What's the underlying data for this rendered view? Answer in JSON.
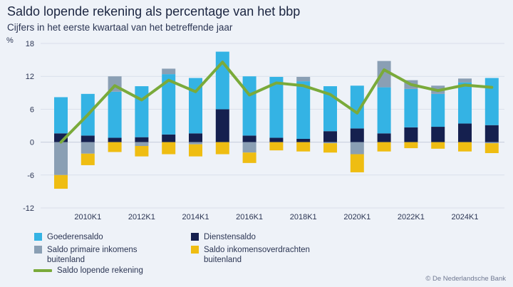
{
  "header": {
    "title": "Saldo lopende rekening als percentage van het bbp",
    "subtitle": "Cijfers in het eerste kwartaal van het betreffende jaar",
    "unit": "%"
  },
  "legend": {
    "goods": "Goederensaldo",
    "services": "Dienstensaldo",
    "primary": "Saldo primaire inkomens buitenland",
    "transfers": "Saldo inkomensoverdrachten buitenland",
    "current": "Saldo lopende rekening"
  },
  "source": "© De Nederlandsche Bank",
  "colors": {
    "goods": "#34b3e4",
    "services": "#15204f",
    "primary": "#8a9fb4",
    "transfers": "#efbd12",
    "current": "#7aaa3a",
    "grid": "#d9dfea"
  },
  "chart_data": {
    "type": "bar",
    "stacked": true,
    "x": [
      2009,
      2010,
      2011,
      2012,
      2013,
      2014,
      2015,
      2016,
      2017,
      2018,
      2019,
      2020,
      2021,
      2022,
      2023,
      2024,
      2025
    ],
    "x_tick_labels": [
      "2010K1",
      "2012K1",
      "2014K1",
      "2016K1",
      "2018K1",
      "2020K1",
      "2022K1",
      "2024K1"
    ],
    "x_tick_years": [
      2010,
      2012,
      2014,
      2016,
      2018,
      2020,
      2022,
      2024
    ],
    "ylim": [
      -12,
      18
    ],
    "yticks": [
      -12,
      -6,
      0,
      6,
      12,
      18
    ],
    "grid": true,
    "legend_position": "bottom",
    "series": [
      {
        "key": "services",
        "name": "Dienstensaldo",
        "kind": "bar",
        "values": [
          1.6,
          1.2,
          0.8,
          0.9,
          1.4,
          1.6,
          6.0,
          1.2,
          0.8,
          0.6,
          2.0,
          2.5,
          1.6,
          2.7,
          2.8,
          3.4,
          3.1
        ]
      },
      {
        "key": "goods",
        "name": "Goederensaldo",
        "kind": "bar",
        "values": [
          6.6,
          7.6,
          8.4,
          9.3,
          11.0,
          10.1,
          10.5,
          10.8,
          11.1,
          10.5,
          8.2,
          7.8,
          8.4,
          7.0,
          6.0,
          7.5,
          8.6
        ]
      },
      {
        "key": "primary",
        "name": "Saldo primaire inkomens buitenland",
        "kind": "bar",
        "values": [
          -6.0,
          -2.1,
          2.8,
          -0.7,
          1.0,
          -0.4,
          0.0,
          -1.9,
          0.0,
          0.8,
          -0.2,
          -2.2,
          4.8,
          1.6,
          1.5,
          0.7,
          -0.2
        ]
      },
      {
        "key": "transfers",
        "name": "Saldo inkomensoverdrachten buitenland",
        "kind": "bar",
        "values": [
          -2.5,
          -2.1,
          -1.8,
          -1.9,
          -2.2,
          -2.2,
          -2.2,
          -1.9,
          -1.5,
          -1.7,
          -1.7,
          -3.3,
          -1.7,
          -1.1,
          -1.2,
          -1.7,
          -1.8
        ]
      },
      {
        "key": "current",
        "name": "Saldo lopende rekening",
        "kind": "line",
        "values": [
          0.0,
          5.0,
          10.3,
          7.7,
          11.3,
          9.2,
          14.6,
          8.6,
          10.8,
          10.3,
          8.7,
          5.3,
          13.2,
          10.5,
          9.4,
          10.4,
          10.0
        ]
      }
    ]
  }
}
